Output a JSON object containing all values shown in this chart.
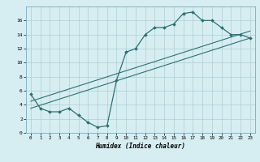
{
  "title": "",
  "xlabel": "Humidex (Indice chaleur)",
  "bg_color": "#d6eef2",
  "grid_color": "#aecdd4",
  "line_color": "#2e7070",
  "xlim": [
    -0.5,
    23.5
  ],
  "ylim": [
    0,
    18
  ],
  "xticks": [
    0,
    1,
    2,
    3,
    4,
    5,
    6,
    7,
    8,
    9,
    10,
    11,
    12,
    13,
    14,
    15,
    16,
    17,
    18,
    19,
    20,
    21,
    22,
    23
  ],
  "yticks": [
    0,
    2,
    4,
    6,
    8,
    10,
    12,
    14,
    16
  ],
  "line1_x": [
    0,
    1,
    2,
    3,
    4,
    5,
    6,
    7,
    8,
    9,
    10,
    11,
    12,
    13,
    14,
    15,
    16,
    17,
    18,
    19,
    20,
    21,
    22,
    23
  ],
  "line1_y": [
    5.5,
    3.5,
    3.0,
    3.0,
    3.5,
    2.5,
    1.5,
    0.8,
    1.0,
    7.5,
    11.5,
    12.0,
    14.0,
    15.0,
    15.0,
    15.5,
    17.0,
    17.2,
    16.0,
    16.0,
    15.0,
    14.0,
    14.0,
    13.5
  ],
  "line2_x": [
    0,
    23
  ],
  "line2_y": [
    3.5,
    13.5
  ],
  "line3_x": [
    0,
    23
  ],
  "line3_y": [
    4.5,
    14.5
  ]
}
